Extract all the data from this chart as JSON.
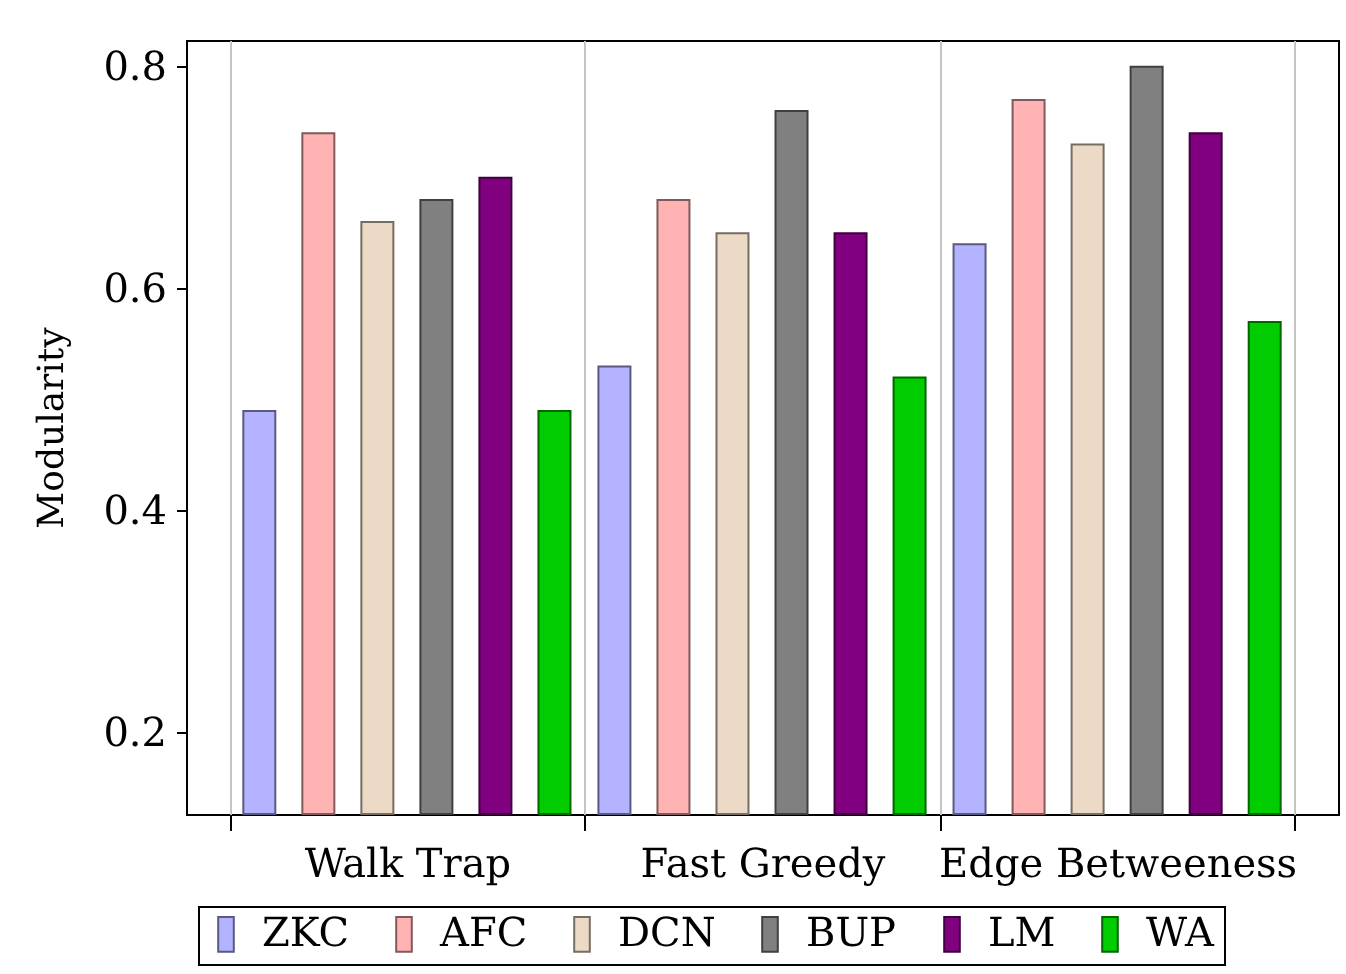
{
  "chart_data": {
    "type": "bar",
    "ylabel": "Modularity",
    "categories": [
      "Walk Trap",
      "Fast Greedy",
      "Edge Betweeness"
    ],
    "series": [
      {
        "name": "ZKC",
        "color": "#b3b3ff",
        "values": [
          0.49,
          0.53,
          0.64
        ]
      },
      {
        "name": "AFC",
        "color": "#ffb3b3",
        "values": [
          0.74,
          0.68,
          0.77
        ]
      },
      {
        "name": "DCN",
        "color": "#ecd9c6",
        "values": [
          0.66,
          0.65,
          0.73
        ]
      },
      {
        "name": "BUP",
        "color": "#808080",
        "values": [
          0.68,
          0.76,
          0.8
        ]
      },
      {
        "name": "LM",
        "color": "#800080",
        "values": [
          0.7,
          0.65,
          0.74
        ]
      },
      {
        "name": "WA",
        "color": "#00cc00",
        "values": [
          0.49,
          0.52,
          0.57
        ]
      }
    ],
    "ylim": [
      0.127,
      0.824
    ],
    "yticks": [
      0.2,
      0.4,
      0.6,
      0.8
    ],
    "grid": "x",
    "legend": "bottom"
  }
}
